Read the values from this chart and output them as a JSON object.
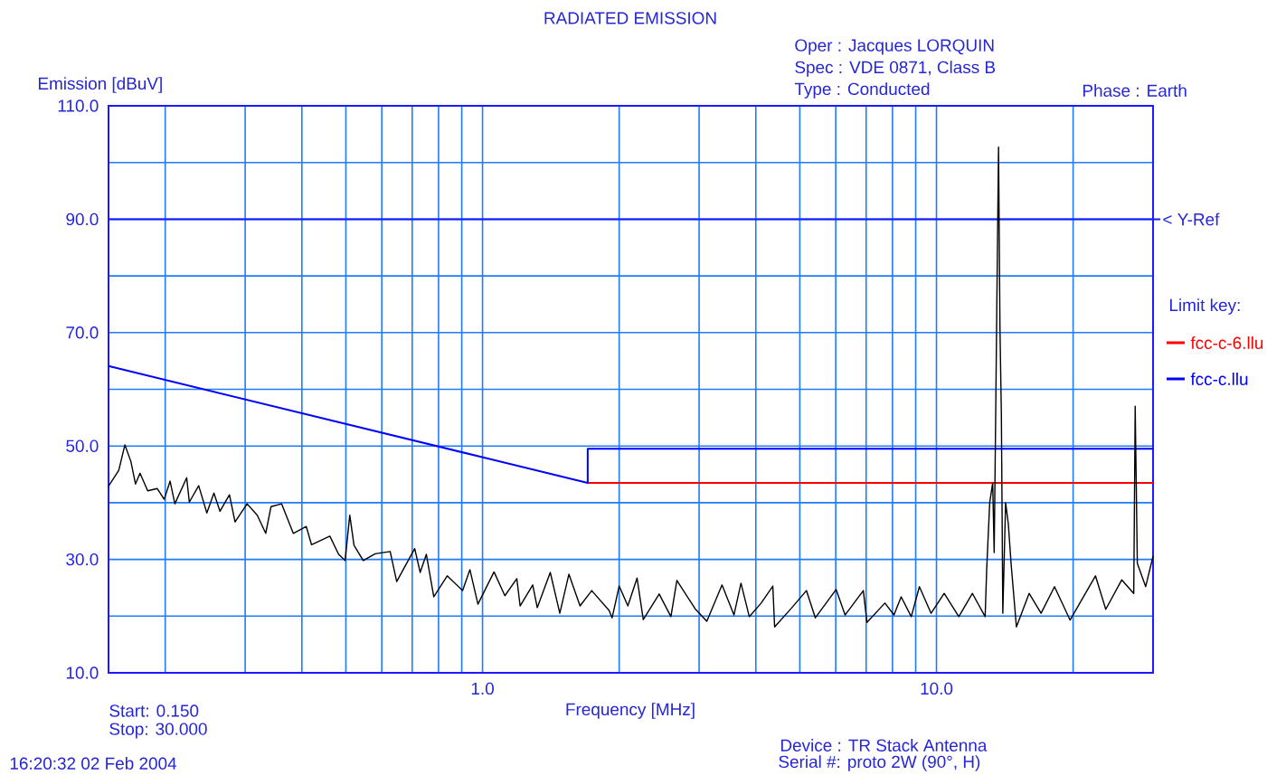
{
  "chart_data": {
    "type": "line",
    "title": "RADIATED EMISSION",
    "xlabel": "Frequency [MHz]",
    "ylabel": "Emission [dBuV]",
    "legend_title": "Limit key:",
    "legend": "right",
    "log": "x",
    "grid": true,
    "xlim": [
      0.15,
      30
    ],
    "ylim": [
      10,
      110
    ],
    "xticks": [
      {
        "value": 0.2,
        "label": null
      },
      {
        "value": 0.3,
        "label": null
      },
      {
        "value": 0.4,
        "label": null
      },
      {
        "value": 0.5,
        "label": null
      },
      {
        "value": 0.6,
        "label": null
      },
      {
        "value": 0.7,
        "label": null
      },
      {
        "value": 0.8,
        "label": null
      },
      {
        "value": 0.9,
        "label": null
      },
      {
        "value": 1,
        "label": "1.0"
      },
      {
        "value": 2,
        "label": null
      },
      {
        "value": 3,
        "label": null
      },
      {
        "value": 4,
        "label": null
      },
      {
        "value": 5,
        "label": null
      },
      {
        "value": 6,
        "label": null
      },
      {
        "value": 7,
        "label": null
      },
      {
        "value": 8,
        "label": null
      },
      {
        "value": 9,
        "label": null
      },
      {
        "value": 10,
        "label": "10.0"
      },
      {
        "value": 20,
        "label": null
      }
    ],
    "yticks": [
      {
        "value": 10,
        "label": "10.0"
      },
      {
        "value": 20,
        "label": null
      },
      {
        "value": 30,
        "label": "30.0"
      },
      {
        "value": 40,
        "label": null
      },
      {
        "value": 50,
        "label": "50.0"
      },
      {
        "value": 60,
        "label": null
      },
      {
        "value": 70,
        "label": "70.0"
      },
      {
        "value": 80,
        "label": null
      },
      {
        "value": 90,
        "label": "90.0"
      },
      {
        "value": 100,
        "label": null
      },
      {
        "value": 110,
        "label": "110.0"
      }
    ],
    "x": [
      0.15,
      0.158,
      0.163,
      0.168,
      0.172,
      0.176,
      0.183,
      0.192,
      0.199,
      0.205,
      0.21,
      0.223,
      0.226,
      0.237,
      0.247,
      0.256,
      0.264,
      0.277,
      0.285,
      0.303,
      0.319,
      0.333,
      0.342,
      0.361,
      0.383,
      0.409,
      0.42,
      0.461,
      0.482,
      0.498,
      0.51,
      0.521,
      0.546,
      0.58,
      0.626,
      0.647,
      0.709,
      0.729,
      0.752,
      0.781,
      0.836,
      0.904,
      0.938,
      0.977,
      1.06,
      1.12,
      1.19,
      1.21,
      1.29,
      1.32,
      1.41,
      1.48,
      1.55,
      1.64,
      1.74,
      1.9,
      1.93,
      2.0,
      2.09,
      2.19,
      2.26,
      2.45,
      2.6,
      2.68,
      2.94,
      3.12,
      3.37,
      3.58,
      3.71,
      3.87,
      4.11,
      4.36,
      4.4,
      4.78,
      5.17,
      5.41,
      6.01,
      6.29,
      6.9,
      7.03,
      7.7,
      8.06,
      8.36,
      8.8,
      9.17,
      9.73,
      10.4,
      11.2,
      12.0,
      12.8,
      12.9,
      13.1,
      13.3,
      13.4,
      13.5,
      13.6,
      13.7,
      13.8,
      13.9,
      14.0,
      14.2,
      14.4,
      14.6,
      15.0,
      16.0,
      17.0,
      18.2,
      19.7,
      20.9,
      22.4,
      23.6,
      25.6,
      27.2,
      27.4,
      27.7,
      28.9,
      30.0
    ],
    "series": [
      {
        "color": "#000000",
        "values": [
          42.9,
          45.7,
          50.2,
          47.3,
          43.3,
          45.2,
          42.1,
          42.5,
          40.6,
          43.8,
          39.8,
          44.4,
          40.1,
          43.0,
          38.2,
          41.7,
          38.5,
          41.4,
          36.6,
          39.8,
          37.8,
          34.6,
          39.3,
          39.8,
          34.6,
          35.8,
          32.6,
          34.1,
          30.9,
          29.8,
          37.8,
          32.5,
          29.8,
          31.0,
          31.4,
          26.1,
          31.9,
          27.7,
          30.9,
          23.4,
          27.1,
          24.5,
          28.2,
          22.1,
          27.8,
          23.6,
          26.6,
          21.8,
          25.5,
          21.5,
          27.7,
          20.5,
          27.4,
          21.8,
          24.5,
          21.0,
          19.7,
          25.3,
          21.8,
          26.7,
          19.4,
          23.9,
          19.9,
          26.3,
          21.3,
          19.1,
          25.5,
          20.2,
          25.8,
          19.9,
          22.3,
          25.3,
          18.1,
          21.3,
          24.5,
          19.7,
          24.7,
          20.2,
          24.5,
          18.9,
          22.3,
          20.2,
          23.4,
          19.9,
          25.2,
          20.5,
          24.0,
          19.9,
          24.0,
          19.9,
          28.2,
          40.0,
          43.5,
          31.2,
          54.8,
          79.5,
          102.7,
          70.8,
          55.3,
          20.5,
          40.0,
          36.2,
          29.3,
          18.1,
          24.0,
          20.5,
          25.2,
          19.3,
          22.9,
          27.1,
          21.2,
          26.4,
          24.0,
          57.0,
          29.3,
          25.2,
          30.6
        ]
      },
      {
        "name": "fcc-c-6.llu",
        "color": "#ff0000",
        "x": [
          1.705,
          30
        ],
        "values": [
          43.5,
          43.5
        ]
      },
      {
        "name": "fcc-c.llu",
        "color": "#0000ff",
        "x": [
          0.15,
          1.705,
          1.705,
          30
        ],
        "values": [
          64.1,
          43.5,
          49.5,
          49.5
        ]
      }
    ],
    "ref_lines": [
      {
        "axis": "y",
        "value": 90,
        "label": "< Y-Ref"
      }
    ],
    "annotations": [
      "Oper : Jacques LORQUIN",
      "Spec : VDE 0871, Class B",
      "Type : Conducted",
      "Phase : Earth",
      "Start: 0.150",
      "Stop: 30.000",
      "16:20:32  02 Feb 2004",
      "Device : TR Stack Antenna",
      "Serial #: proto 2W (90°, H)"
    ]
  }
}
